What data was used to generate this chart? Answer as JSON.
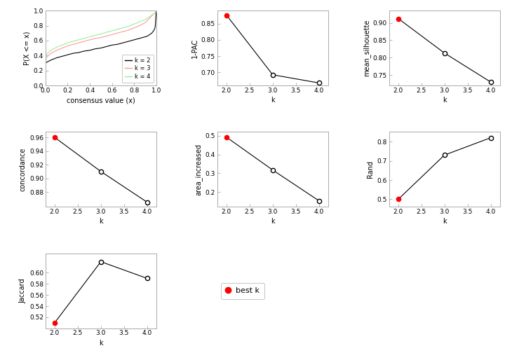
{
  "ecdf": {
    "k2": {
      "x": [
        0.0,
        0.001,
        0.005,
        0.01,
        0.05,
        0.1,
        0.15,
        0.2,
        0.25,
        0.3,
        0.35,
        0.4,
        0.45,
        0.5,
        0.55,
        0.6,
        0.65,
        0.7,
        0.75,
        0.8,
        0.85,
        0.9,
        0.92,
        0.94,
        0.96,
        0.98,
        0.99,
        1.0
      ],
      "y": [
        0.0,
        0.28,
        0.3,
        0.31,
        0.34,
        0.37,
        0.39,
        0.41,
        0.43,
        0.44,
        0.46,
        0.47,
        0.49,
        0.5,
        0.52,
        0.54,
        0.55,
        0.57,
        0.59,
        0.61,
        0.63,
        0.65,
        0.66,
        0.68,
        0.7,
        0.74,
        0.78,
        1.0
      ]
    },
    "k3": {
      "x": [
        0.0,
        0.001,
        0.005,
        0.01,
        0.05,
        0.1,
        0.15,
        0.2,
        0.25,
        0.3,
        0.35,
        0.4,
        0.45,
        0.5,
        0.55,
        0.6,
        0.65,
        0.7,
        0.75,
        0.8,
        0.85,
        0.9,
        0.92,
        0.94,
        0.96,
        0.98,
        0.99,
        1.0
      ],
      "y": [
        0.0,
        0.33,
        0.36,
        0.38,
        0.43,
        0.47,
        0.5,
        0.53,
        0.55,
        0.57,
        0.59,
        0.61,
        0.63,
        0.64,
        0.66,
        0.68,
        0.7,
        0.72,
        0.74,
        0.77,
        0.8,
        0.84,
        0.87,
        0.9,
        0.93,
        0.96,
        0.97,
        1.0
      ]
    },
    "k4": {
      "x": [
        0.0,
        0.001,
        0.005,
        0.01,
        0.05,
        0.1,
        0.15,
        0.2,
        0.25,
        0.3,
        0.35,
        0.4,
        0.45,
        0.5,
        0.55,
        0.6,
        0.65,
        0.7,
        0.75,
        0.8,
        0.85,
        0.9,
        0.92,
        0.94,
        0.96,
        0.98,
        0.99,
        1.0
      ],
      "y": [
        0.0,
        0.36,
        0.4,
        0.42,
        0.47,
        0.51,
        0.54,
        0.57,
        0.59,
        0.61,
        0.63,
        0.65,
        0.67,
        0.69,
        0.71,
        0.73,
        0.75,
        0.77,
        0.79,
        0.82,
        0.85,
        0.88,
        0.9,
        0.92,
        0.94,
        0.96,
        0.97,
        1.0
      ]
    },
    "colors": {
      "k2": "#000000",
      "k3": "#FF9999",
      "k4": "#99EE99"
    },
    "xlabel": "consensus value (x)",
    "ylabel": "P(X <= x)",
    "ylim": [
      0.0,
      1.0
    ],
    "xlim": [
      0.0,
      1.0
    ],
    "yticks": [
      0.0,
      0.2,
      0.4,
      0.6,
      0.8,
      1.0
    ],
    "xticks": [
      0.0,
      0.2,
      0.4,
      0.6,
      0.8,
      1.0
    ]
  },
  "pac": {
    "k": [
      2,
      3,
      4
    ],
    "values": [
      0.876,
      0.693,
      0.668
    ],
    "best_k": 2,
    "ylabel": "1-PAC",
    "ylim": [
      0.66,
      0.89
    ],
    "yticks": [
      0.7,
      0.75,
      0.8,
      0.85
    ]
  },
  "silhouette": {
    "k": [
      2,
      3,
      4
    ],
    "values": [
      0.912,
      0.813,
      0.73
    ],
    "best_k": 2,
    "ylabel": "mean_silhouette",
    "ylim": [
      0.72,
      0.935
    ],
    "yticks": [
      0.75,
      0.8,
      0.85,
      0.9
    ]
  },
  "concordance": {
    "k": [
      2,
      3,
      4
    ],
    "values": [
      0.96,
      0.91,
      0.865
    ],
    "best_k": 2,
    "ylabel": "concordance",
    "ylim": [
      0.858,
      0.968
    ],
    "yticks": [
      0.88,
      0.9,
      0.92,
      0.94,
      0.96
    ]
  },
  "area_increased": {
    "k": [
      2,
      3,
      4
    ],
    "values": [
      0.492,
      0.317,
      0.153
    ],
    "best_k": 2,
    "ylabel": "area_increased",
    "ylim": [
      0.12,
      0.52
    ],
    "yticks": [
      0.2,
      0.3,
      0.4,
      0.5
    ]
  },
  "rand": {
    "k": [
      2,
      3,
      4
    ],
    "values": [
      0.5,
      0.73,
      0.82
    ],
    "best_k": 2,
    "ylabel": "Rand",
    "ylim": [
      0.46,
      0.85
    ],
    "yticks": [
      0.5,
      0.6,
      0.7,
      0.8
    ]
  },
  "jaccard": {
    "k": [
      2,
      3,
      4
    ],
    "values": [
      0.51,
      0.62,
      0.59
    ],
    "best_k": 2,
    "ylabel": "Jaccard",
    "ylim": [
      0.5,
      0.635
    ],
    "yticks": [
      0.52,
      0.54,
      0.56,
      0.58,
      0.6
    ]
  },
  "xlabel": "k",
  "xlim": [
    1.8,
    4.2
  ],
  "xticks": [
    2.0,
    2.5,
    3.0,
    3.5,
    4.0
  ],
  "best_color": "#FF0000",
  "normal_color": "#000000",
  "line_color": "#000000",
  "bg_color": "#FFFFFF",
  "axis_color": "#AAAAAA"
}
